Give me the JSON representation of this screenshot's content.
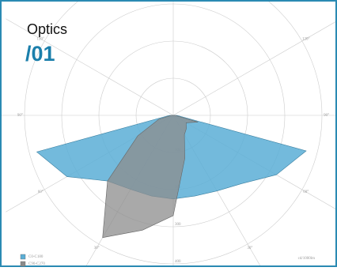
{
  "header": {
    "title": "Optics",
    "number": "/01"
  },
  "chart_data": {
    "type": "polar",
    "unit": "cd/1000lm",
    "angles": [
      -90,
      -75,
      -60,
      -45,
      -30,
      -15,
      0,
      15,
      30,
      45,
      60,
      75,
      90
    ],
    "series": [
      {
        "name": "C0-C180",
        "color": "#5aaed6",
        "values": [
          10,
          380,
          330,
          250,
          230,
          225,
          225,
          225,
          235,
          260,
          320,
          370,
          10
        ]
      },
      {
        "name": "C90-C270",
        "color": "#8c8c8c",
        "values": [
          5,
          40,
          110,
          250,
          380,
          320,
          270,
          120,
          60,
          50,
          40,
          69,
          5
        ]
      }
    ],
    "rlim": [
      0,
      400
    ],
    "rticks": [
      100,
      200,
      300,
      400
    ],
    "angle_ticks": [
      {
        "value": -120,
        "label": "120°"
      },
      {
        "value": -90,
        "label": "90°"
      },
      {
        "value": -60,
        "label": "60°"
      },
      {
        "value": -30,
        "label": "30°"
      },
      {
        "value": 30,
        "label": "30°"
      },
      {
        "value": 60,
        "label": "60°"
      },
      {
        "value": 90,
        "label": "90°"
      },
      {
        "value": 120,
        "label": "120°"
      }
    ],
    "grid": true
  }
}
